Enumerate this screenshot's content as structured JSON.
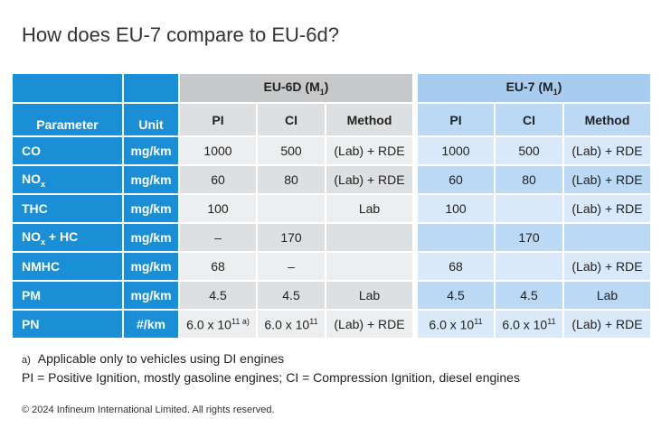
{
  "title": "How does EU-7 compare to EU-6d?",
  "table": {
    "group_eu6": {
      "base": "EU-6D (M",
      "sub": "1",
      "close": ")"
    },
    "group_eu7": {
      "base": "EU-7 (M",
      "sub": "1",
      "close": ")"
    },
    "header": {
      "parameter": "Parameter",
      "unit": "Unit",
      "eu6_cols": [
        "PI",
        "CI",
        "Method"
      ],
      "eu7_cols": [
        "PI",
        "CI",
        "Method"
      ]
    },
    "rows": [
      {
        "param": {
          "base": "CO",
          "sub": ""
        },
        "unit": "mg/km",
        "eu6": [
          {
            "t": "1000"
          },
          {
            "t": "500"
          },
          {
            "t": "(Lab) + RDE"
          }
        ],
        "eu7": [
          {
            "t": "1000"
          },
          {
            "t": "500"
          },
          {
            "t": "(Lab) + RDE"
          }
        ]
      },
      {
        "param": {
          "base": "NO",
          "sub": "x",
          "rest": ""
        },
        "unit": "mg/km",
        "eu6": [
          {
            "t": "60"
          },
          {
            "t": "80"
          },
          {
            "t": "(Lab) + RDE"
          }
        ],
        "eu7": [
          {
            "t": "60"
          },
          {
            "t": "80"
          },
          {
            "t": "(Lab) + RDE"
          }
        ]
      },
      {
        "param": {
          "base": "THC",
          "sub": ""
        },
        "unit": "mg/km",
        "eu6": [
          {
            "t": "100"
          },
          {
            "t": ""
          },
          {
            "t": "Lab"
          }
        ],
        "eu7": [
          {
            "t": "100"
          },
          {
            "t": ""
          },
          {
            "t": "(Lab) + RDE"
          }
        ]
      },
      {
        "param": {
          "base": "NO",
          "sub": "x",
          "rest": " + HC"
        },
        "unit": "mg/km",
        "eu6": [
          {
            "t": "–"
          },
          {
            "t": "170"
          },
          {
            "t": ""
          }
        ],
        "eu7": [
          {
            "t": ""
          },
          {
            "t": "170"
          },
          {
            "t": ""
          }
        ]
      },
      {
        "param": {
          "base": "NMHC",
          "sub": ""
        },
        "unit": "mg/km",
        "eu6": [
          {
            "t": "68"
          },
          {
            "t": "–"
          },
          {
            "t": ""
          }
        ],
        "eu7": [
          {
            "t": "68"
          },
          {
            "t": ""
          },
          {
            "t": "(Lab) + RDE"
          }
        ]
      },
      {
        "param": {
          "base": "PM",
          "sub": ""
        },
        "unit": "mg/km",
        "eu6": [
          {
            "t": "4.5"
          },
          {
            "t": "4.5"
          },
          {
            "t": "Lab"
          }
        ],
        "eu7": [
          {
            "t": "4.5"
          },
          {
            "t": "4.5"
          },
          {
            "t": "Lab"
          }
        ]
      },
      {
        "param": {
          "base": "PN",
          "sub": ""
        },
        "unit": "#/km",
        "eu6": [
          {
            "t": "6.0 x 10",
            "sup": "11 a)"
          },
          {
            "t": "6.0 x 10",
            "sup": "11"
          },
          {
            "t": "(Lab) + RDE"
          }
        ],
        "eu7": [
          {
            "t": "6.0 x 10",
            "sup": "11"
          },
          {
            "t": "6.0 x 10",
            "sup": "11"
          },
          {
            "t": "(Lab) + RDE"
          }
        ]
      }
    ]
  },
  "footnote_a": {
    "mark": "a)",
    "text": "Applicable only to vehicles using DI engines"
  },
  "footnote_pi_ci": "PI = Positive Ignition, mostly gasoline engines; CI = Compression Ignition, diesel engines",
  "copyright": "© 2024 Infineum International Limited. All rights reserved."
}
